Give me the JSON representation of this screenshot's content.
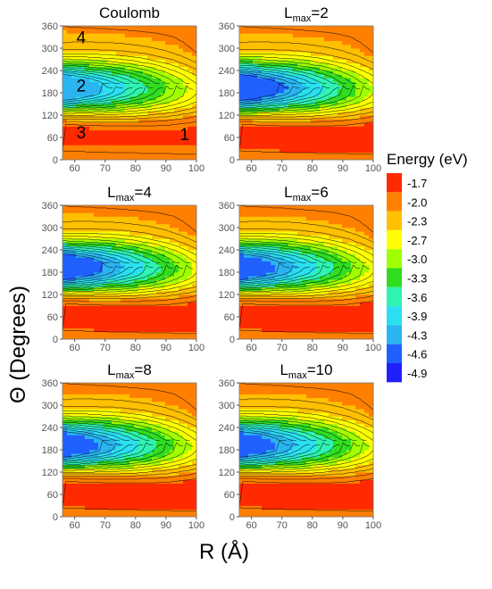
{
  "chart_data": [
    {
      "type": "heatmap",
      "panel": "coulomb",
      "title": "Coulomb",
      "title_base": "",
      "title_sub": "",
      "title_tail": "",
      "annotations": [
        "1",
        "2",
        "3",
        "4"
      ],
      "xlim": [
        56,
        100
      ],
      "ylim": [
        0,
        360
      ],
      "xticks": [
        60,
        70,
        80,
        90,
        100
      ],
      "yticks": [
        0,
        60,
        120,
        180,
        240,
        300,
        360
      ],
      "min_theta": 205,
      "min_energy": -4.2,
      "max_energy": -1.8
    },
    {
      "type": "heatmap",
      "panel": "lmax2",
      "title": "",
      "title_base": "L",
      "title_sub": "max",
      "title_tail": "=2",
      "annotations": [],
      "xlim": [
        56,
        100
      ],
      "ylim": [
        0,
        360
      ],
      "xticks": [
        60,
        70,
        80,
        90,
        100
      ],
      "yticks": [
        0,
        60,
        120,
        180,
        240,
        300,
        360
      ],
      "min_theta": 205,
      "min_energy": -4.7,
      "max_energy": -1.7
    },
    {
      "type": "heatmap",
      "panel": "lmax4",
      "title": "",
      "title_base": "L",
      "title_sub": "max",
      "title_tail": "=4",
      "annotations": [],
      "xlim": [
        56,
        100
      ],
      "ylim": [
        0,
        360
      ],
      "xticks": [
        60,
        70,
        80,
        90,
        100
      ],
      "yticks": [
        0,
        60,
        120,
        180,
        240,
        300,
        360
      ],
      "min_theta": 205,
      "min_energy": -4.6,
      "max_energy": -1.7
    },
    {
      "type": "heatmap",
      "panel": "lmax6",
      "title": "",
      "title_base": "L",
      "title_sub": "max",
      "title_tail": "=6",
      "annotations": [],
      "xlim": [
        56,
        100
      ],
      "ylim": [
        0,
        360
      ],
      "xticks": [
        60,
        70,
        80,
        90,
        100
      ],
      "yticks": [
        0,
        60,
        120,
        180,
        240,
        300,
        360
      ],
      "min_theta": 205,
      "min_energy": -4.5,
      "max_energy": -1.7
    },
    {
      "type": "heatmap",
      "panel": "lmax8",
      "title": "",
      "title_base": "L",
      "title_sub": "max",
      "title_tail": "=8",
      "annotations": [],
      "xlim": [
        56,
        100
      ],
      "ylim": [
        0,
        360
      ],
      "xticks": [
        60,
        70,
        80,
        90,
        100
      ],
      "yticks": [
        0,
        60,
        120,
        180,
        240,
        300,
        360
      ],
      "min_theta": 205,
      "min_energy": -4.5,
      "max_energy": -1.7
    },
    {
      "type": "heatmap",
      "panel": "lmax10",
      "title": "",
      "title_base": "L",
      "title_sub": "max",
      "title_tail": "=10",
      "annotations": [],
      "xlim": [
        56,
        100
      ],
      "ylim": [
        0,
        360
      ],
      "xticks": [
        60,
        70,
        80,
        90,
        100
      ],
      "yticks": [
        0,
        60,
        120,
        180,
        240,
        300,
        360
      ],
      "min_theta": 205,
      "min_energy": -4.5,
      "max_energy": -1.7
    }
  ],
  "legend": {
    "title": "Energy (eV)",
    "levels": [
      "-1.7",
      "-2.0",
      "-2.3",
      "-2.7",
      "-3.0",
      "-3.3",
      "-3.6",
      "-3.9",
      "-4.3",
      "-4.6",
      "-4.9"
    ],
    "colors": [
      "#ff2a00",
      "#ff7f00",
      "#ffc000",
      "#ffff00",
      "#a0ff00",
      "#30dd20",
      "#2ff3b3",
      "#2ae0f0",
      "#2ab4f0",
      "#2060ff",
      "#2020ff"
    ]
  },
  "axes": {
    "xlabel": "R (Å)",
    "ylabel": "Θ (Degrees)"
  }
}
